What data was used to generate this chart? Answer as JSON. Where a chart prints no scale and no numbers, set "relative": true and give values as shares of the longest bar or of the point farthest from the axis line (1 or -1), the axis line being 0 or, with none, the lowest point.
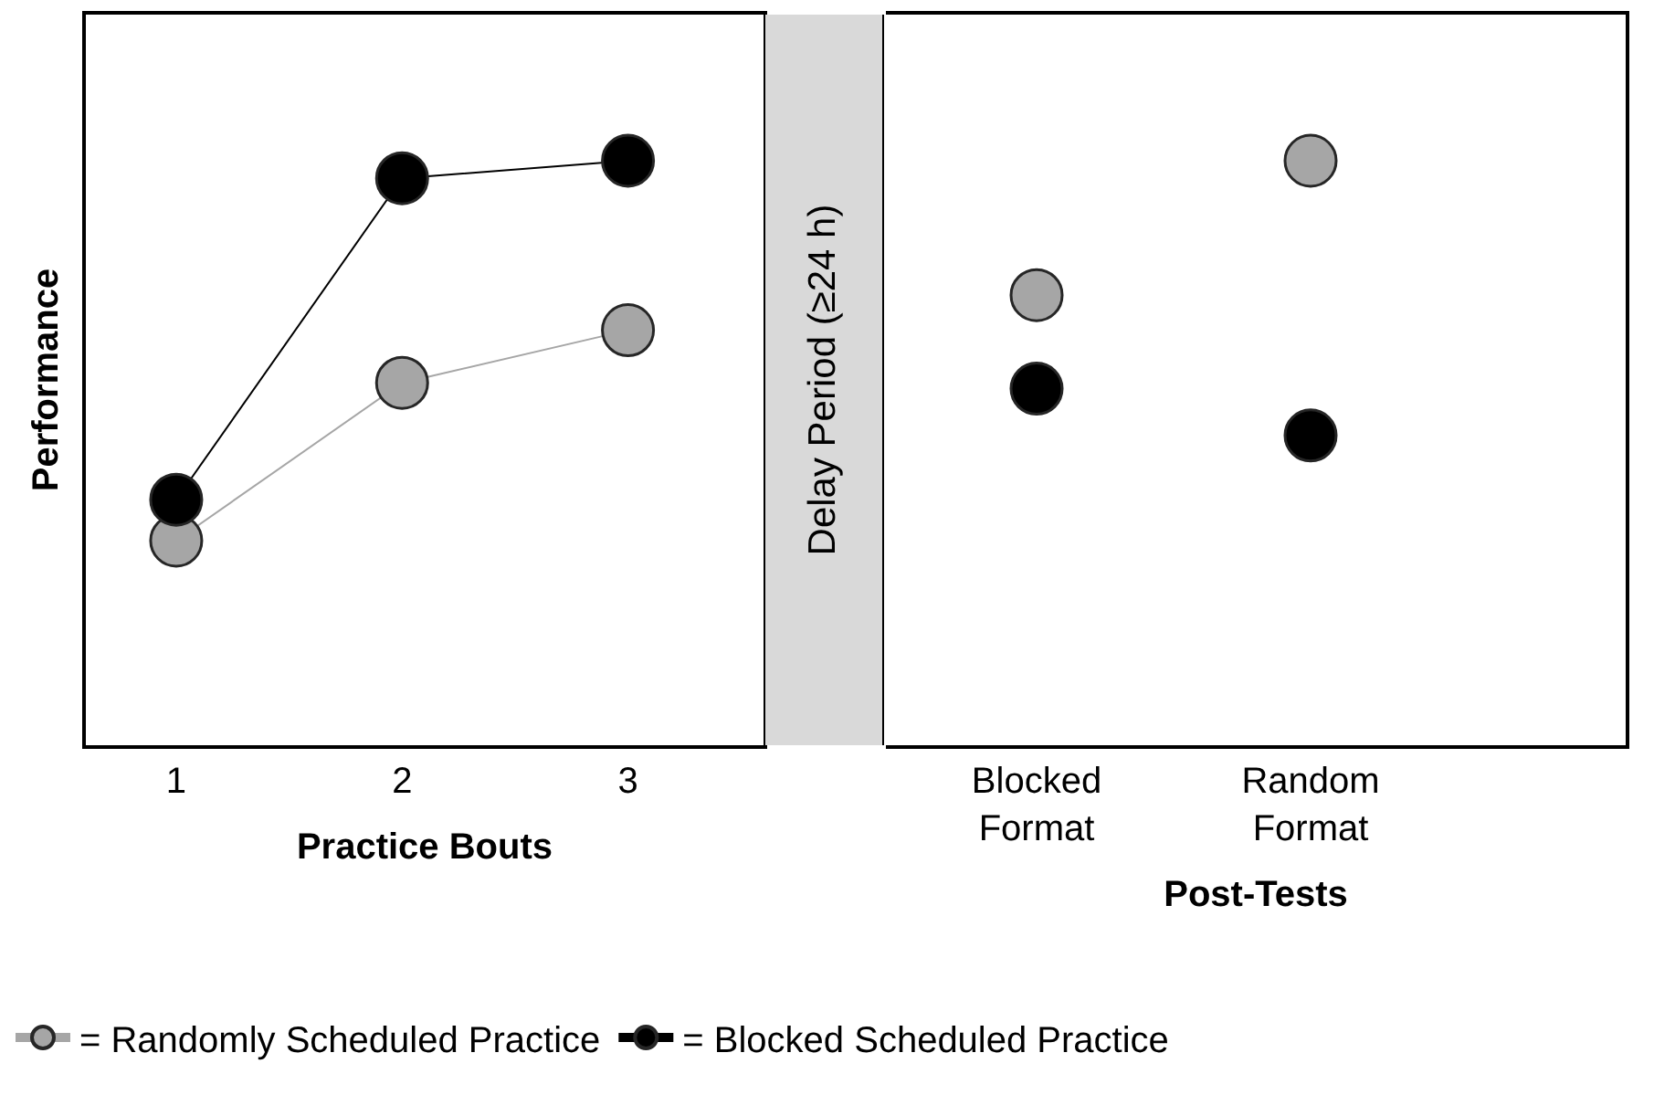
{
  "chart_data": [
    {
      "type": "line",
      "ylabel": "Performance",
      "xlabel": "Practice Bouts",
      "categories": [
        "1",
        "2",
        "3"
      ],
      "relative": true,
      "legend": "bottom",
      "marker": "circle",
      "line_style": "solid",
      "series": [
        {
          "name": "= Randomly Scheduled Practice",
          "color": "#a6a6a6",
          "values": [
            0.35,
            0.62,
            0.71
          ]
        },
        {
          "name": "= Blocked Scheduled Practice",
          "color": "#000000",
          "values": [
            0.42,
            0.97,
            1.0
          ]
        }
      ]
    },
    {
      "type": "other",
      "title": "Delay Period (≥24 h)"
    },
    {
      "type": "scatter",
      "xlabel": "Post-Tests",
      "categories": [
        "Blocked Format",
        "Random Format"
      ],
      "relative": true,
      "marker": "circle",
      "series": [
        {
          "color": "#a6a6a6",
          "values": [
            0.77,
            1.0
          ]
        },
        {
          "color": "#000000",
          "values": [
            0.61,
            0.53
          ]
        }
      ]
    }
  ]
}
